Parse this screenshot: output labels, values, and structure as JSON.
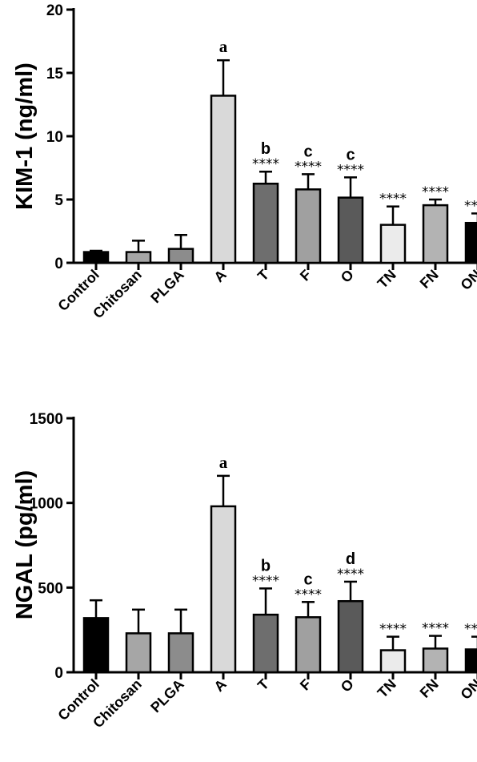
{
  "chart_data": [
    {
      "type": "bar",
      "title": "",
      "xlabel": "",
      "ylabel": "KIM-1 (ng/ml)",
      "ylim": [
        0,
        20
      ],
      "yticks": [
        0,
        5,
        10,
        15,
        20
      ],
      "categories": [
        "Control",
        "Chitosan",
        "PLGA",
        "A",
        "T",
        "F",
        "O",
        "TN",
        "FN",
        "ON"
      ],
      "values": [
        0.85,
        0.85,
        1.1,
        13.2,
        6.25,
        5.8,
        5.15,
        3.0,
        4.55,
        3.15
      ],
      "errors": [
        0.1,
        0.9,
        1.1,
        2.8,
        0.95,
        1.2,
        1.6,
        1.45,
        0.45,
        0.75
      ],
      "fills": [
        "#000000",
        "#a6a6a6",
        "#8c8c8c",
        "#d9d9d9",
        "#6e6e6e",
        "#a0a0a0",
        "#5a5a5a",
        "#ebebeb",
        "#b3b3b3",
        "#000000"
      ],
      "letters": [
        "",
        "",
        "",
        "a",
        "b",
        "c",
        "c",
        "",
        "",
        ""
      ],
      "stars": [
        "",
        "",
        "",
        "",
        "****",
        "****",
        "****",
        "****",
        "****",
        "****"
      ],
      "grid": false,
      "legend": "none"
    },
    {
      "type": "bar",
      "title": "",
      "xlabel": "",
      "ylabel": "NGAL (pg/ml)",
      "ylim": [
        0,
        1500
      ],
      "yticks": [
        0,
        500,
        1000,
        1500
      ],
      "categories": [
        "Control",
        "Chitosan",
        "PLGA",
        "A",
        "T",
        "F",
        "O",
        "TN",
        "FN",
        "ON"
      ],
      "values": [
        320,
        230,
        230,
        980,
        340,
        325,
        420,
        130,
        140,
        135
      ],
      "errors": [
        105,
        140,
        140,
        180,
        155,
        90,
        115,
        80,
        75,
        75
      ],
      "fills": [
        "#000000",
        "#a6a6a6",
        "#8c8c8c",
        "#d9d9d9",
        "#6e6e6e",
        "#a0a0a0",
        "#5a5a5a",
        "#ebebeb",
        "#b3b3b3",
        "#000000"
      ],
      "letters": [
        "",
        "",
        "",
        "a",
        "b",
        "c",
        "d",
        "",
        "",
        ""
      ],
      "stars": [
        "",
        "",
        "",
        "",
        "****",
        "****",
        "****",
        "****",
        "****",
        "****"
      ],
      "grid": false,
      "legend": "none"
    }
  ]
}
